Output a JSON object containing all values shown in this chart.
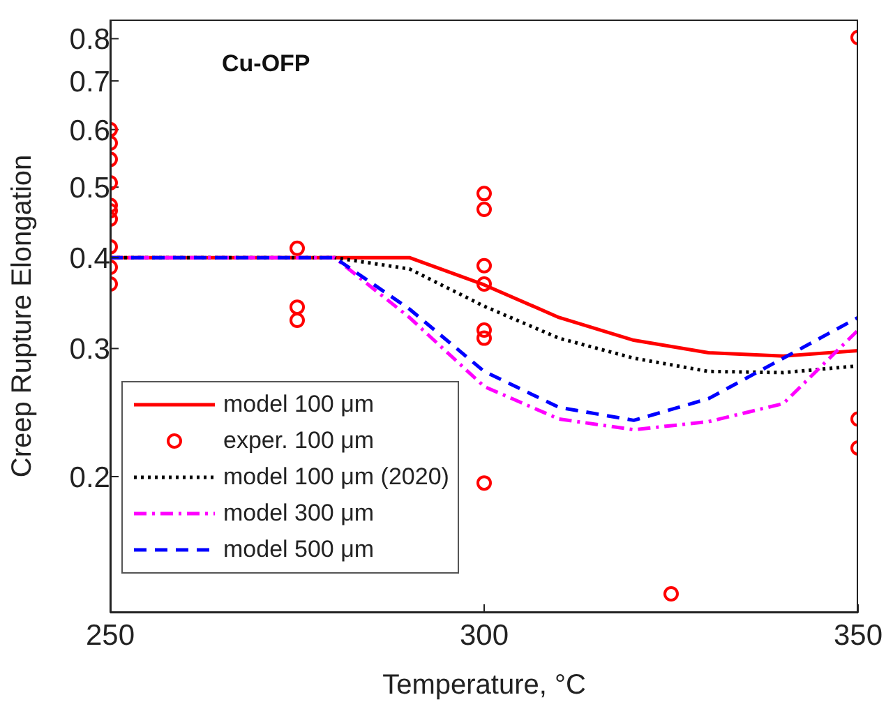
{
  "chart_data": {
    "type": "line",
    "title": "Cu-OFP",
    "xlabel": "Temperature, °C",
    "ylabel": "Creep Rupture Elongation",
    "log": "y",
    "xlim": [
      250,
      350
    ],
    "xticks": [
      250,
      300,
      350
    ],
    "ylim": [
      0.13,
      0.85
    ],
    "yticks": [
      0.2,
      0.3,
      0.4,
      0.5,
      0.6,
      0.7,
      0.8
    ],
    "legend": "bottom left",
    "series": [
      {
        "name": "model 100 μm",
        "color": "#ff0000",
        "line_style": "solid",
        "marker": "none",
        "x": [
          250,
          260,
          270,
          280,
          290,
          300,
          310,
          320,
          330,
          340,
          350
        ],
        "values": [
          0.4,
          0.4,
          0.4,
          0.4,
          0.4,
          0.367,
          0.331,
          0.308,
          0.296,
          0.293,
          0.298
        ]
      },
      {
        "name": "exper. 100 μm",
        "type": "scatter",
        "color": "#ff0000",
        "marker": "circle",
        "x": [
          250,
          250,
          250,
          250,
          250,
          250,
          250,
          250,
          250,
          250,
          275,
          275,
          275,
          300,
          300,
          300,
          300,
          300,
          300,
          300,
          325,
          350,
          350,
          350
        ],
        "values": [
          0.6,
          0.575,
          0.546,
          0.507,
          0.472,
          0.464,
          0.452,
          0.414,
          0.388,
          0.368,
          0.412,
          0.342,
          0.328,
          0.49,
          0.466,
          0.39,
          0.368,
          0.318,
          0.31,
          0.196,
          0.138,
          0.803,
          0.24,
          0.219
        ]
      },
      {
        "name": "model 100 μm (2020)",
        "color": "#000000",
        "line_style": "dotted",
        "marker": "none",
        "x": [
          250,
          260,
          270,
          280,
          290,
          300,
          310,
          320,
          330,
          340,
          350
        ],
        "values": [
          0.4,
          0.4,
          0.4,
          0.4,
          0.386,
          0.343,
          0.31,
          0.291,
          0.279,
          0.278,
          0.284
        ]
      },
      {
        "name": "model 300 μm",
        "color": "#ff00ff",
        "line_style": "dashdot",
        "marker": "none",
        "x": [
          250,
          260,
          270,
          280,
          290,
          300,
          310,
          320,
          330,
          340,
          350
        ],
        "values": [
          0.4,
          0.4,
          0.4,
          0.4,
          0.331,
          0.266,
          0.24,
          0.232,
          0.238,
          0.252,
          0.318
        ]
      },
      {
        "name": "model 500 μm",
        "color": "#0000ff",
        "line_style": "dashed",
        "marker": "none",
        "x": [
          250,
          260,
          270,
          280,
          290,
          300,
          310,
          320,
          330,
          340,
          350
        ],
        "values": [
          0.4,
          0.4,
          0.4,
          0.4,
          0.34,
          0.279,
          0.249,
          0.239,
          0.256,
          0.291,
          0.331
        ]
      }
    ]
  }
}
